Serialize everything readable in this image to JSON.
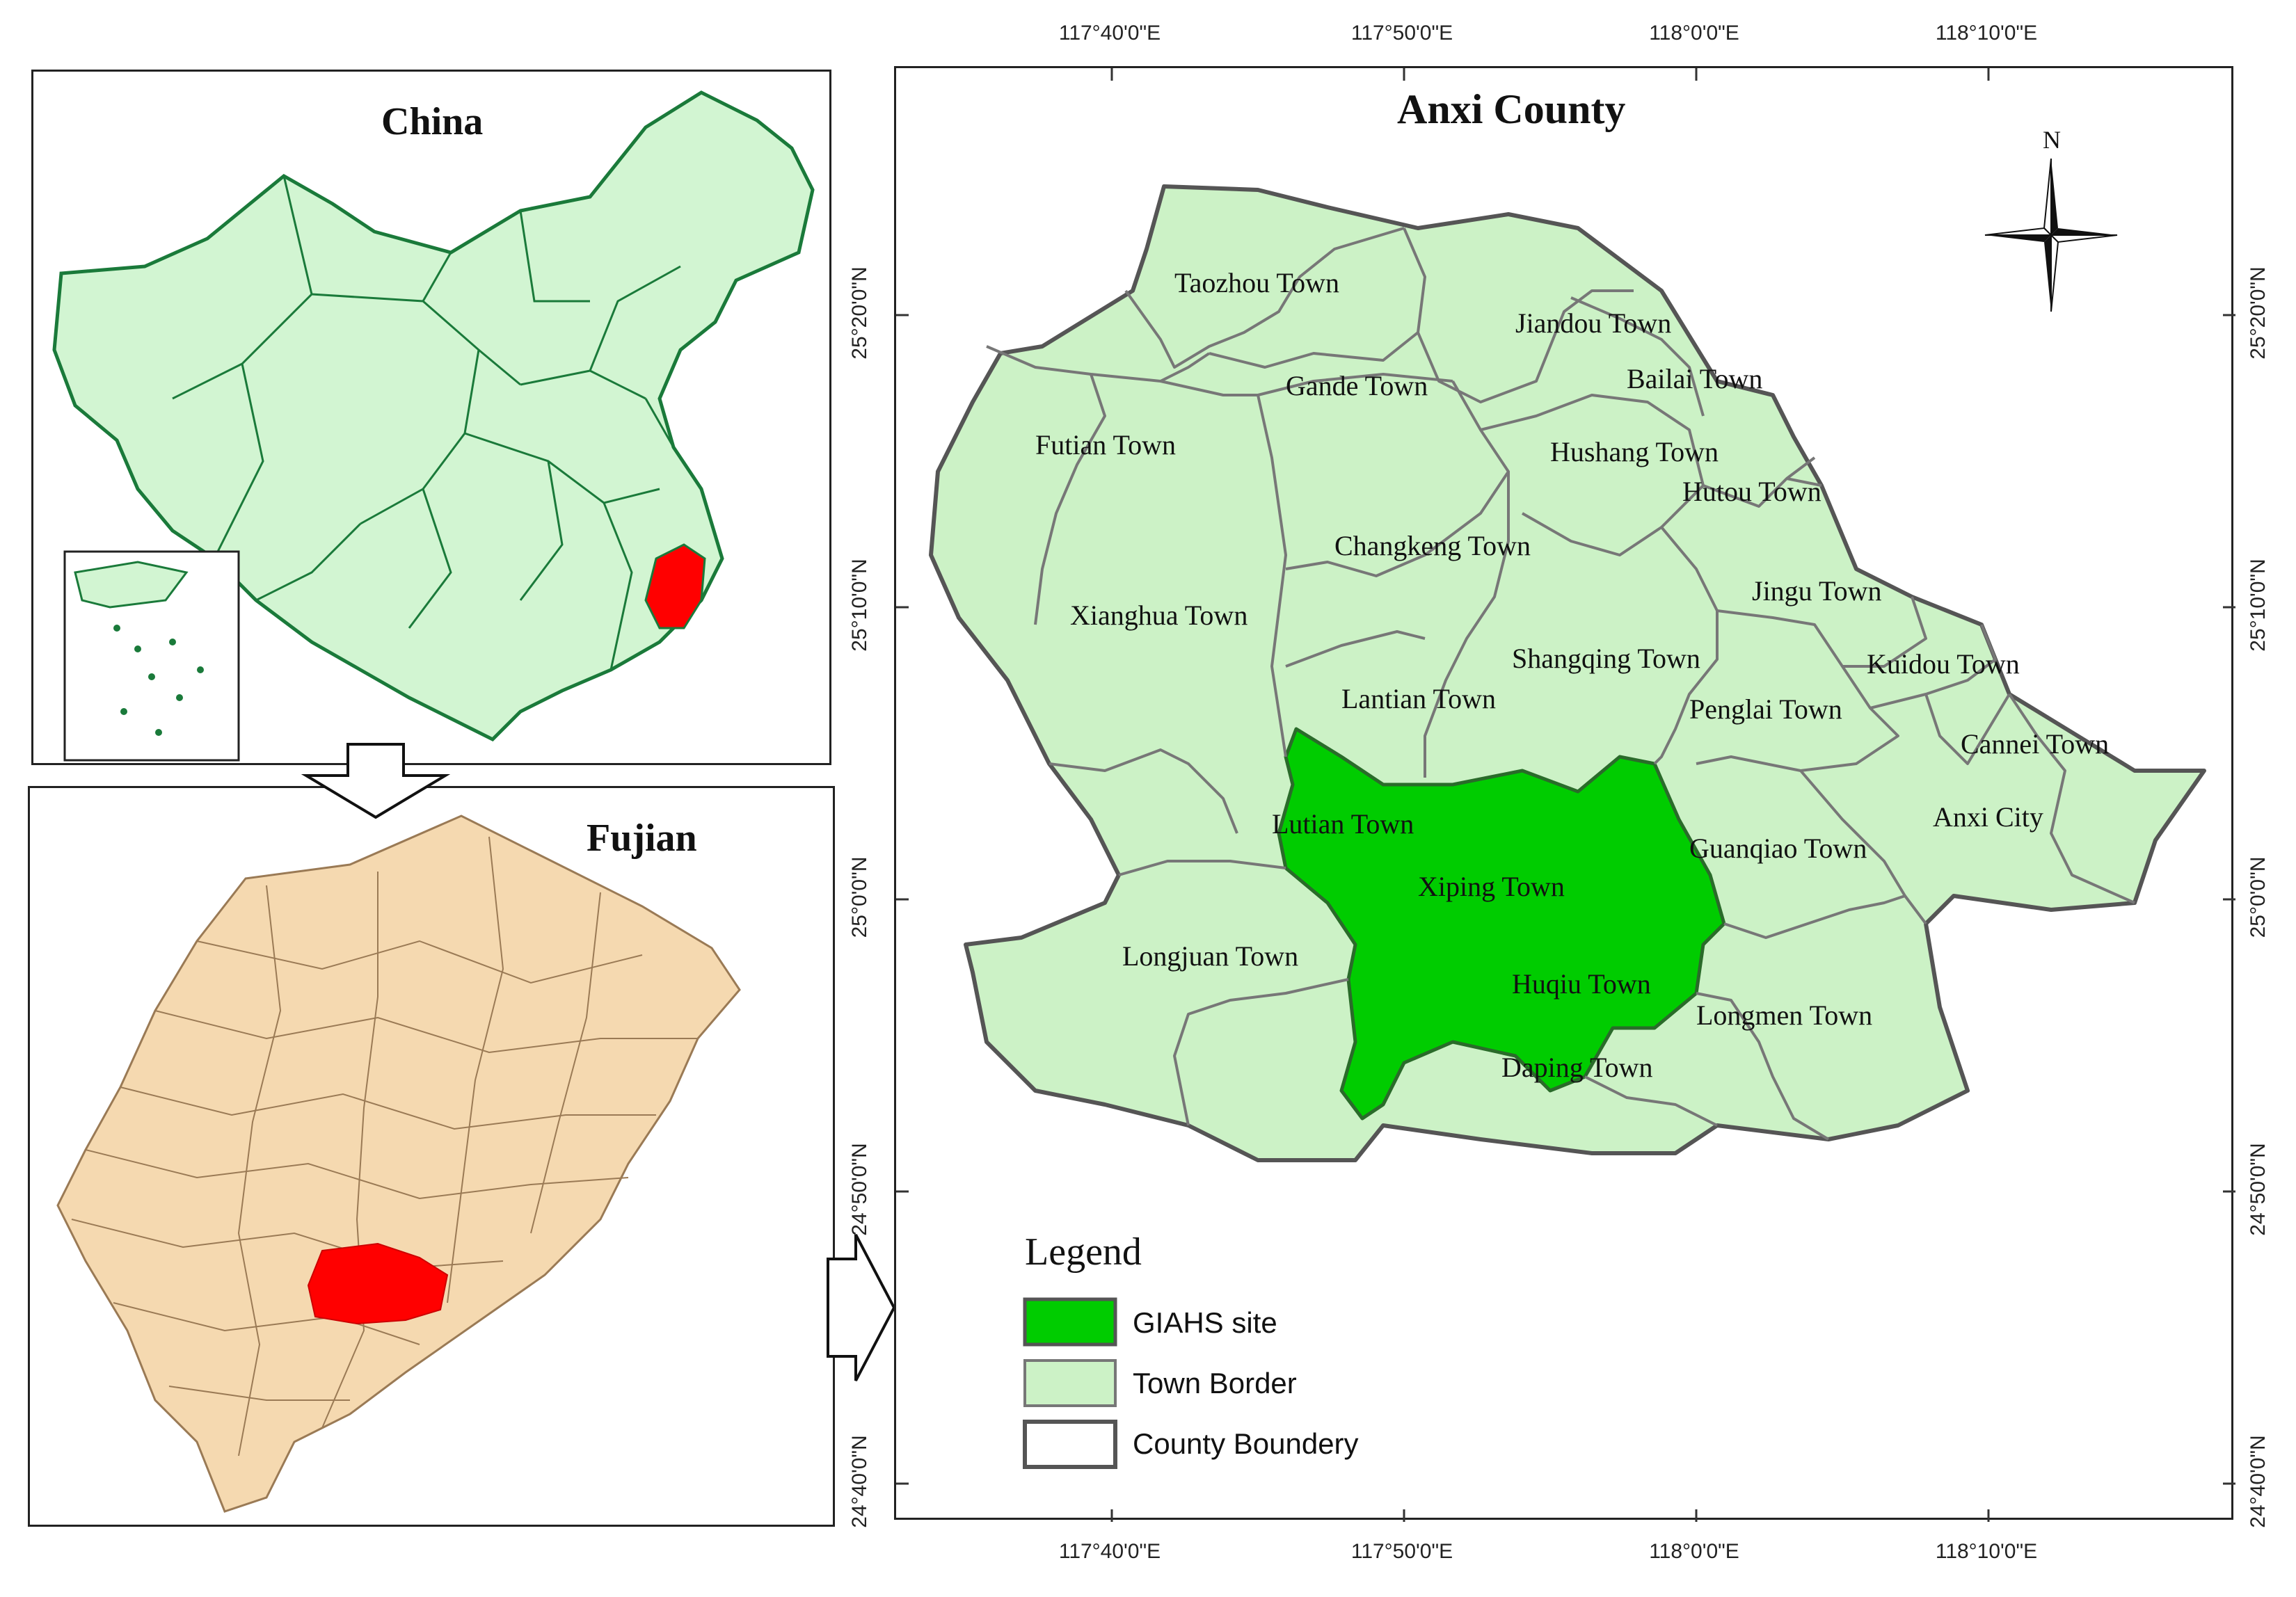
{
  "china_panel": {
    "title": "China"
  },
  "fujian_panel": {
    "title": "Fujian"
  },
  "county_panel": {
    "title": "Anxi County"
  },
  "north_arrow": {
    "label": "N"
  },
  "lon_ticks": [
    "117°40'0\"E",
    "117°50'0\"E",
    "118°0'0\"E",
    "118°10'0\"E"
  ],
  "lat_ticks": [
    "25°20'0\"N",
    "25°10'0\"N",
    "25°0'0\"N",
    "24°50'0\"N",
    "24°40'0\"N"
  ],
  "towns": [
    "Taozhou Town",
    "Jiandou Town",
    "Bailai Town",
    "Gande Town",
    "Futian Town",
    "Hushang Town",
    "Hutou Town",
    "Changkeng Town",
    "Jingu Town",
    "Xianghua Town",
    "Shangqing Town",
    "Kuidou Town",
    "Lantian Town",
    "Penglai Town",
    "Cannei Town",
    "Lutian Town",
    "Anxi City",
    "Guanqiao Town",
    "Xiping Town",
    "Longjuan Town",
    "Huqiu Town",
    "Longmen Town",
    "Daping Town"
  ],
  "legend": {
    "title": "Legend",
    "items": [
      {
        "label": "GIAHS site",
        "color": "#00cc00"
      },
      {
        "label": "Town Border",
        "color": "#ccf2c6"
      },
      {
        "label": "County Boundery",
        "color": "#ffffff"
      }
    ]
  },
  "colors": {
    "giahs": "#00cc00",
    "town_fill": "#ccf2c6",
    "china_fill": "#d2f5d2",
    "china_border": "#1a7a3a",
    "fujian_fill": "#f5d9b0",
    "highlight": "#ff0000"
  }
}
